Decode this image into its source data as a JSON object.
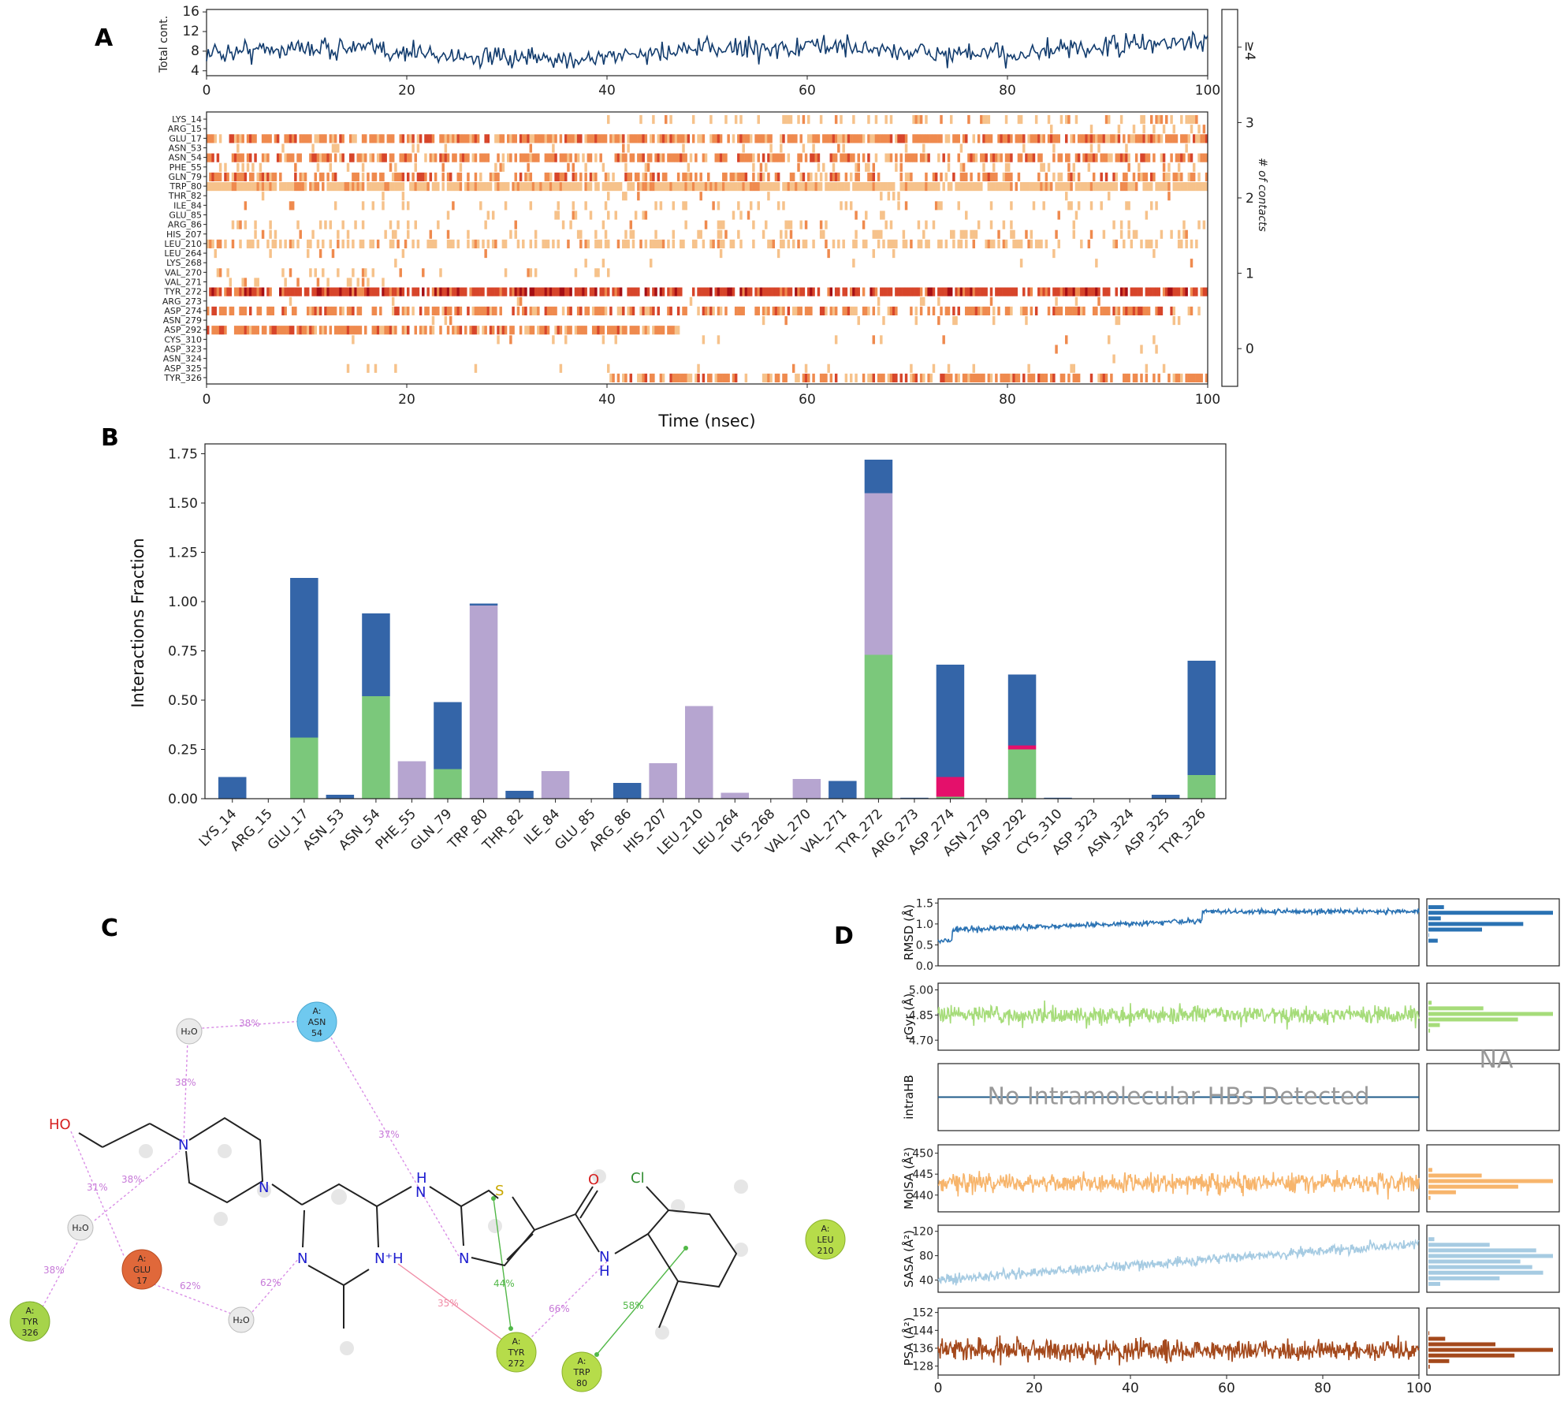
{
  "panels": {
    "a": "A",
    "b": "B",
    "c": "C",
    "d": "D"
  },
  "colors": {
    "hbond": "#3465a8",
    "hydrophobic": "#b6a5d0",
    "ionic": "#e4106b",
    "water": "#7bc87b",
    "line_a": "#123c6e",
    "rmsd": "#2a72b3",
    "rgyr": "#a6dc7a",
    "intrahb": "#1f5b8a",
    "molsa": "#f7b56c",
    "sasa": "#a6cbe2",
    "psa": "#a4491c",
    "pink_line": "#d98ee6",
    "green_line": "#52b848"
  },
  "panel_a": {
    "top": {
      "ylabel": "Total cont.",
      "yticks": [
        4,
        8,
        12,
        16
      ],
      "xticks": [
        0,
        20,
        40,
        60,
        80,
        100
      ],
      "xlim": [
        0,
        100
      ],
      "ylim": [
        3,
        16.5
      ]
    },
    "heatmap": {
      "residues": [
        "LYS_14",
        "ARG_15",
        "GLU_17",
        "ASN_53",
        "ASN_54",
        "PHE_55",
        "GLN_79",
        "TRP_80",
        "THR_82",
        "ILE_84",
        "GLU_85",
        "ARG_86",
        "HIS_207",
        "LEU_210",
        "LEU_264",
        "LYS_268",
        "VAL_270",
        "VAL_271",
        "TYR_272",
        "ARG_273",
        "ASP_274",
        "ASN_279",
        "ASP_292",
        "CYS_310",
        "ASP_323",
        "ASN_324",
        "ASP_325",
        "TYR_326"
      ],
      "xticks": [
        0,
        20,
        40,
        60,
        80,
        100
      ],
      "xlabel": "Time (nsec)",
      "colorbar_ticks": [
        "0",
        "1",
        "2",
        "3",
        "≥4"
      ],
      "colorbar_label": "# of contacts",
      "colorbar_colors": [
        "#ffffff",
        "#f6c28b",
        "#ef8a4e",
        "#d7452a",
        "#a50f15"
      ]
    }
  },
  "chart_data": [
    {
      "type": "line",
      "panel": "A (top)",
      "ylabel": "Total cont.",
      "x_range": [
        0,
        100
      ],
      "ylim": [
        3,
        16.5
      ],
      "series": [
        {
          "values_summary": {
            "approx_mean": 8.5,
            "approx_min": 4,
            "approx_max": 16
          }
        }
      ]
    },
    {
      "type": "heatmap",
      "panel": "A (bottom)",
      "xlabel": "Time (nsec)",
      "rows": [
        "LYS_14",
        "ARG_15",
        "GLU_17",
        "ASN_53",
        "ASN_54",
        "PHE_55",
        "GLN_79",
        "TRP_80",
        "THR_82",
        "ILE_84",
        "GLU_85",
        "ARG_86",
        "HIS_207",
        "LEU_210",
        "LEU_264",
        "LYS_268",
        "VAL_270",
        "VAL_271",
        "TYR_272",
        "ARG_273",
        "ASP_274",
        "ASN_279",
        "ASP_292",
        "CYS_310",
        "ASP_323",
        "ASN_324",
        "ASP_325",
        "TYR_326"
      ],
      "x_range": [
        0,
        100
      ],
      "legend_title": "# of contacts",
      "levels": [
        "0",
        "1",
        "2",
        "3",
        "≥4"
      ]
    },
    {
      "type": "bar",
      "panel": "B",
      "ylabel": "Interactions Fraction",
      "ylim": [
        0,
        1.8
      ],
      "yticks": [
        "0.00",
        "0.25",
        "0.50",
        "0.75",
        "1.00",
        "1.25",
        "1.50",
        "1.75"
      ],
      "categories": [
        "LYS_14",
        "ARG_15",
        "GLU_17",
        "ASN_53",
        "ASN_54",
        "PHE_55",
        "GLN_79",
        "TRP_80",
        "THR_82",
        "ILE_84",
        "GLU_85",
        "ARG_86",
        "HIS_207",
        "LEU_210",
        "LEU_264",
        "LYS_268",
        "VAL_270",
        "VAL_271",
        "TYR_272",
        "ARG_273",
        "ASP_274",
        "ASN_279",
        "ASP_292",
        "CYS_310",
        "ASP_323",
        "ASN_324",
        "ASP_325",
        "TYR_326"
      ],
      "stacked": true,
      "series": [
        {
          "key": "water",
          "values": [
            0,
            0,
            0.31,
            0,
            0.52,
            0,
            0.15,
            0,
            0,
            0,
            0,
            0,
            0,
            0,
            0,
            0,
            0,
            0,
            0.73,
            0,
            0.01,
            0,
            0.25,
            0,
            0,
            0,
            0,
            0.12
          ]
        },
        {
          "key": "ionic",
          "values": [
            0,
            0,
            0,
            0,
            0,
            0,
            0,
            0,
            0,
            0,
            0,
            0,
            0,
            0,
            0,
            0,
            0,
            0,
            0,
            0,
            0.1,
            0,
            0.02,
            0,
            0,
            0,
            0,
            0
          ]
        },
        {
          "key": "hydrophobic",
          "values": [
            0,
            0,
            0,
            0,
            0,
            0.19,
            0,
            0.98,
            0,
            0.14,
            0,
            0,
            0.18,
            0.47,
            0.03,
            0,
            0.1,
            0,
            0.82,
            0,
            0,
            0,
            0,
            0,
            0,
            0,
            0,
            0
          ]
        },
        {
          "key": "hbond",
          "values": [
            0.11,
            0,
            0.81,
            0.02,
            0.42,
            0,
            0.34,
            0.01,
            0.04,
            0,
            0,
            0.08,
            0,
            0,
            0,
            0,
            0,
            0.09,
            0.17,
            0.005,
            0.57,
            0,
            0.36,
            0.005,
            0,
            0,
            0.02,
            0.58
          ]
        }
      ]
    },
    {
      "type": "line",
      "panel": "D",
      "x_range": [
        0,
        100
      ],
      "xticks": [
        0,
        20,
        40,
        60,
        80,
        100
      ],
      "subplots": [
        {
          "ylabel": "RMSD (Å)",
          "yticks": [
            "0.0",
            "0.5",
            "1.0",
            "1.5"
          ],
          "ylim": [
            0,
            1.6
          ],
          "approx_mean": 1.1
        },
        {
          "ylabel": "rGyr (Å)",
          "yticks": [
            "4.70",
            "4.85",
            "5.00"
          ],
          "ylim": [
            4.64,
            5.04
          ],
          "approx_mean": 4.85
        },
        {
          "ylabel": "intraHB",
          "note": "No Intramolecular HBs Detected",
          "hist_note": "NA"
        },
        {
          "ylabel": "MolSA (Å²)",
          "yticks": [
            "440",
            "445",
            "450"
          ],
          "ylim": [
            436,
            452
          ],
          "approx_mean": 443
        },
        {
          "ylabel": "SASA (Å²)",
          "yticks": [
            "40",
            "80",
            "120"
          ],
          "ylim": [
            20,
            130
          ],
          "approx_mean": 65
        },
        {
          "ylabel": "PSA (Å²)",
          "yticks": [
            "128",
            "136",
            "144",
            "152"
          ],
          "ylim": [
            124,
            154
          ],
          "approx_mean": 135
        }
      ]
    }
  ],
  "panel_c": {
    "residue_nodes": [
      {
        "chain": "A:",
        "name": "ASN",
        "num": "54"
      },
      {
        "chain": "A:",
        "name": "GLU",
        "num": "17"
      },
      {
        "chain": "A:",
        "name": "TYR",
        "num": "326"
      },
      {
        "chain": "A:",
        "name": "TYR",
        "num": "272"
      },
      {
        "chain": "A:",
        "name": "TRP",
        "num": "80"
      },
      {
        "chain": "A:",
        "name": "LEU",
        "num": "210"
      }
    ],
    "water_label": "H₂O",
    "percentages": [
      "38%",
      "38%",
      "37%",
      "38%",
      "31%",
      "38%",
      "62%",
      "62%",
      "35%",
      "44%",
      "66%",
      "58%"
    ],
    "atoms": {
      "ho": "HO",
      "n": "N",
      "nh": "N",
      "h": "H",
      "s": "S",
      "o": "O",
      "cl": "Cl",
      "nplus": "N⁺H"
    }
  }
}
